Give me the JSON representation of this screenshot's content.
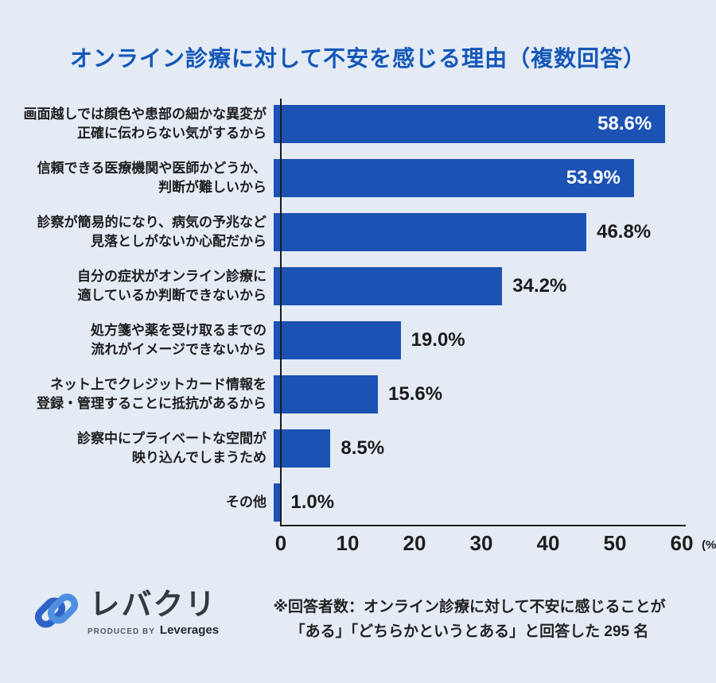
{
  "title": "オンライン診療に対して不安を感じる理由（複数回答）",
  "chart_data": {
    "type": "bar",
    "orientation": "horizontal",
    "title": "オンライン診療に対して不安を感じる理由（複数回答）",
    "xlim": [
      0,
      60
    ],
    "x_ticks": [
      0,
      10,
      20,
      30,
      40,
      50,
      60
    ],
    "x_unit": "(%)",
    "bar_color": "#1b52b4",
    "grid": false,
    "bars": [
      {
        "label_lines": [
          "画面越しでは顔色や患部の細かな異変が",
          "正確に伝わらない気がするから"
        ],
        "value": 58.6,
        "value_label": "58.6%",
        "label_placement": "inside"
      },
      {
        "label_lines": [
          "信頼できる医療機関や医師かどうか、",
          "判断が難しいから"
        ],
        "value": 53.9,
        "value_label": "53.9%",
        "label_placement": "inside"
      },
      {
        "label_lines": [
          "診察が簡易的になり、病気の予兆など",
          "見落としがないか心配だから"
        ],
        "value": 46.8,
        "value_label": "46.8%",
        "label_placement": "outside"
      },
      {
        "label_lines": [
          "自分の症状がオンライン診療に",
          "適しているか判断できないから"
        ],
        "value": 34.2,
        "value_label": "34.2%",
        "label_placement": "outside"
      },
      {
        "label_lines": [
          "処方箋や薬を受け取るまでの",
          "流れがイメージできないから"
        ],
        "value": 19.0,
        "value_label": "19.0%",
        "label_placement": "outside"
      },
      {
        "label_lines": [
          "ネット上でクレジットカード情報を",
          "登録・管理することに抵抗があるから"
        ],
        "value": 15.6,
        "value_label": "15.6%",
        "label_placement": "outside"
      },
      {
        "label_lines": [
          "診察中にプライベートな空間が",
          "映り込んでしまうため"
        ],
        "value": 8.5,
        "value_label": "8.5%",
        "label_placement": "outside"
      },
      {
        "label_lines": [
          "その他"
        ],
        "value": 1.0,
        "value_label": "1.0%",
        "label_placement": "outside"
      }
    ]
  },
  "footer": {
    "logo_name": "レバクリ",
    "logo_produced_by": "PRODUCED BY",
    "logo_company": "Leverages",
    "note_line1": "※回答者数：オンライン診療に対して不安に感じることが",
    "note_line2": "「ある」「どちらかというとある」と回答した 295 名"
  },
  "colors": {
    "background": "#e4ebf5",
    "bar": "#1b52b4",
    "title": "#1457b8",
    "axis": "#1a1a1a",
    "logo_dark_blue": "#2e62c8",
    "logo_light_blue": "#4e8fe0"
  }
}
